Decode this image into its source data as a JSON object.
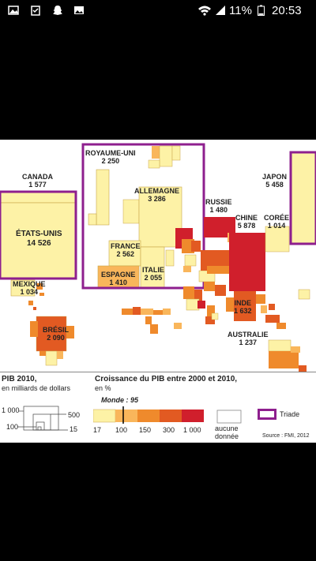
{
  "status_bar": {
    "battery": "11%",
    "time": "20:53",
    "icons": [
      "gallery-icon",
      "clipboard-check-icon",
      "snapchat-icon",
      "image-icon",
      "wifi-icon",
      "signal-icon",
      "battery-icon"
    ]
  },
  "map": {
    "countries": {
      "canada": {
        "name": "CANADA",
        "value": "1 577"
      },
      "usa": {
        "name": "ÉTATS-UNIS",
        "value": "14 526"
      },
      "mexico": {
        "name": "MEXIQUE",
        "value": "1 034"
      },
      "brazil": {
        "name": "BRÉSIL",
        "value": "2 090"
      },
      "uk": {
        "name": "ROYAUME-UNI",
        "value": "2 250"
      },
      "germany": {
        "name": "ALLEMAGNE",
        "value": "3 286"
      },
      "france": {
        "name": "FRANCE",
        "value": "2 562"
      },
      "spain": {
        "name": "ESPAGNE",
        "value": "1 410"
      },
      "italy": {
        "name": "ITALIE",
        "value": "2 055"
      },
      "russia": {
        "name": "RUSSIE",
        "value": "1 480"
      },
      "china": {
        "name": "CHINE",
        "value": "5 878"
      },
      "korea": {
        "name": "CORÉE",
        "value": "1 014"
      },
      "japan": {
        "name": "JAPON",
        "value": "5 458"
      },
      "india": {
        "name": "INDE",
        "value": "1 632"
      },
      "australia": {
        "name": "AUSTRALIE",
        "value": "1 237"
      }
    },
    "colors": {
      "pale": "#fdf2a6",
      "light_orange": "#f9b65b",
      "orange": "#ef8a2c",
      "dark_orange": "#e25a22",
      "red": "#d01f2c",
      "triade": "#8e1f8e"
    }
  },
  "legend": {
    "pib_title": "PIB 2010,",
    "pib_sub": "en milliards de dollars",
    "pib_sizes": {
      "s1000": "1 000",
      "s500": "500",
      "s100": "100",
      "s15": "15"
    },
    "growth_title": "Croissance du PIB entre 2000 et 2010,",
    "growth_sub": "en %",
    "monde": "Monde : 95",
    "scale_labels": [
      "17",
      "100",
      "150",
      "300",
      "1 000"
    ],
    "no_data": [
      "aucune",
      "donnée"
    ],
    "triade": "Triade",
    "source": "Source : FMI, 2012"
  }
}
